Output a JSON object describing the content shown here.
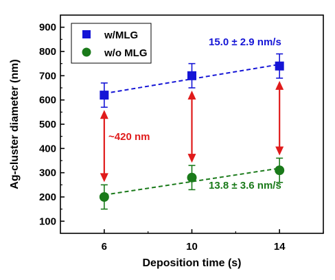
{
  "colors": {
    "w_mlg": "#1515d6",
    "wo_mlg": "#1a7a1a",
    "arrow": "#e01b1b",
    "axis": "#000000"
  },
  "chart_data": {
    "type": "scatter",
    "xlabel": "Deposition time (s)",
    "ylabel": "Ag-cluster diameter (nm)",
    "xlim": [
      4,
      16
    ],
    "ylim": [
      50,
      950
    ],
    "x_ticks": [
      6,
      10,
      14
    ],
    "y_ticks": [
      100,
      200,
      300,
      400,
      500,
      600,
      700,
      800,
      900
    ],
    "grid": false,
    "legend_position": "top-left",
    "series": [
      {
        "name": "w/MLG",
        "marker": "square",
        "color": "#1515d6",
        "x": [
          6,
          10,
          14
        ],
        "y": [
          620,
          700,
          740
        ],
        "error": [
          50,
          50,
          50
        ],
        "fit_label": "15.0 ± 2.9 nm/s"
      },
      {
        "name": "w/o MLG",
        "marker": "circle",
        "color": "#1a7a1a",
        "x": [
          6,
          10,
          14
        ],
        "y": [
          200,
          280,
          310
        ],
        "error": [
          50,
          50,
          50
        ],
        "fit_label": "13.8 ± 3.6 nm/s"
      }
    ],
    "annotations": [
      {
        "text": "~420 nm",
        "color": "#e01b1b"
      }
    ],
    "gap_arrows_x": [
      6,
      10,
      14
    ]
  }
}
